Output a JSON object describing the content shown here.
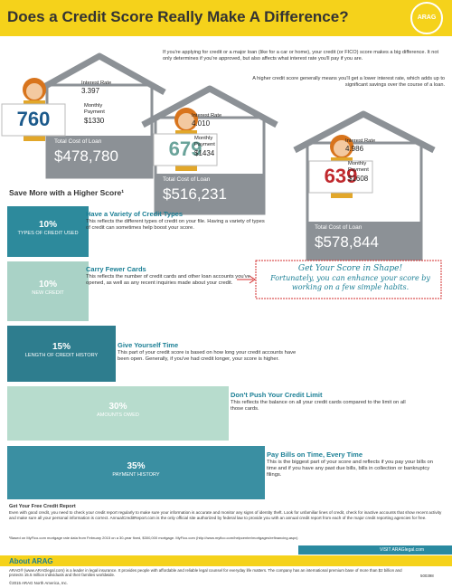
{
  "header": {
    "title": "Does a Credit Score Really Make A Difference?",
    "logo": "ARAG"
  },
  "intro": [
    "If you're applying for credit or a major loan (like for a car or home), your credit (or FICO) score makes a big difference. It not only determines if you're approved, but also affects what interest rate you'll pay if you are.",
    "A higher credit score generally means you'll get a lower interest rate, which adds up to significant savings over the course of a loan."
  ],
  "houses": [
    {
      "score": "760",
      "rate_label": "Interest Rate",
      "rate": "3.397",
      "payment_label": "Monthly Payment",
      "payment": "$1330",
      "total_label": "Total Cost of Loan",
      "total": "$478,780"
    },
    {
      "score": "679",
      "rate_label": "Interest Rate",
      "rate": "4.010",
      "payment_label": "Monthly Payment",
      "payment": "$1434",
      "total_label": "Total Cost of Loan",
      "total": "$516,231"
    },
    {
      "score": "639",
      "rate_label": "Interest Rate",
      "rate": "4.986",
      "payment_label": "Monthly Payment",
      "payment": "$1608",
      "total_label": "Total Cost of Loan",
      "total": "$578,844"
    }
  ],
  "section_title": "Save More with a Higher Score¹",
  "factors": [
    {
      "percent": "10%",
      "label": "TYPES OF CREDIT USED",
      "heading": "Have a Variety of Credit Types",
      "text": "This reflects the different types of credit on your file. Having a variety of types of credit can sometimes help boost your score."
    },
    {
      "percent": "10%",
      "label": "NEW CREDIT",
      "heading": "Carry Fewer Cards",
      "text": "This reflects the number of credit cards and other loan accounts you've opened, as well as any recent inquiries made about your credit."
    },
    {
      "percent": "15%",
      "label": "LENGTH OF CREDIT HISTORY",
      "heading": "Give Yourself Time",
      "text": "This part of your credit score is based on how long your credit accounts have been open. Generally, if you've had credit longer, your score is higher."
    },
    {
      "percent": "30%",
      "label": "AMOUNTS OWED",
      "heading": "Don't Push Your Credit Limit",
      "text": "This reflects the balance on all your credit cards compared to the limit on all those cards."
    },
    {
      "percent": "35%",
      "label": "PAYMENT HISTORY",
      "heading": "Pay Bills on Time, Every Time",
      "text": "This is the biggest part of your score and reflects if you pay your bills on time and if you have any past due bills, bills in collection or bankruptcy filings."
    }
  ],
  "callout": {
    "title": "Get Your Score in Shape!",
    "text": "Fortunately, you can enhance your score by working on a few simple habits."
  },
  "footer": {
    "report_title": "Get Your Free Credit Report",
    "report_text": "Even with good credit, you need to check your credit report regularly to make sure your information is accurate and monitor any signs of identity theft. Look for unfamiliar lines of credit, check for inactive accounts that show recent activity and make sure all your personal information is correct. AnnualCreditReport.com is the only official site authorized by federal law to provide you with an annual credit report from each of the major credit reporting agencies for free.",
    "footnote": "¹Based on MyFico.com mortgage rate data from February 2015 on a 30-year fixed, $300,000 mortgage. MyFico.com (http://www.myfico.com/helpcenter/mortgages/refinancing.aspx)",
    "visit": "VISIT ARAGlegal.com",
    "about_title": "About ARAG",
    "about_text": "ARAG® (www.ARAGlegal.com) is a leader in legal insurance. It provides people with affordable and reliable legal counsel for everyday life matters. The company has an international premium base of more than $2 billion and protects 15.5 million individuals and their families worldwide.",
    "copyright": "©2015 ARAG North America, Inc.",
    "code": "500398"
  }
}
